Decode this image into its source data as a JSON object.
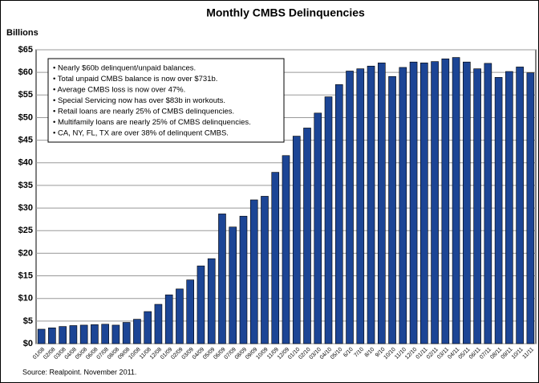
{
  "chart_data": {
    "type": "bar",
    "title": "Monthly CMBS Delinquencies",
    "y_axis_label": "Billions",
    "source": "Source: Realpoint.  November 2011.",
    "annotations": [
      "• Nearly $60b delinquent/unpaid balances.",
      "• Total unpaid CMBS balance is now over $731b.",
      "• Average CMBS loss is now over 47%.",
      "• Special Servicing now has over $83b in workouts.",
      "• Retail loans are nearly 25% of CMBS delinquencies.",
      "• Multifamily loans are nearly 25% of CMBS delinquencies.",
      "• CA, NY, FL, TX are over 38% of delinquent CMBS."
    ],
    "categories": [
      "01/08",
      "02/08",
      "03/08",
      "04/08",
      "05/08",
      "06/08",
      "07/08",
      "08/08",
      "09/08",
      "10/08",
      "11/08",
      "12/08",
      "01/09",
      "02/09",
      "03/09",
      "04/09",
      "05/09",
      "06/09",
      "07/09",
      "08/09",
      "09/09",
      "10/09",
      "11/09",
      "12/09",
      "01/10",
      "02/10",
      "03/10",
      "04/10",
      "05/10",
      "6/10",
      "7/10",
      "8/10",
      "9/10",
      "10/10",
      "11/10",
      "12/10",
      "01/11",
      "02/11",
      "03/11",
      "04/11",
      "05/11",
      "06/11",
      "07/11",
      "08/11",
      "09/11",
      "10/11",
      "11/11"
    ],
    "values": [
      3.2,
      3.5,
      3.8,
      4.0,
      4.1,
      4.2,
      4.3,
      4.1,
      4.7,
      5.4,
      7.1,
      8.7,
      10.8,
      12.1,
      14.1,
      17.2,
      18.8,
      28.7,
      25.8,
      28.2,
      31.8,
      32.6,
      37.9,
      41.6,
      45.9,
      47.7,
      51.0,
      54.6,
      57.3,
      60.3,
      60.8,
      61.4,
      62.1,
      59.1,
      61.1,
      62.3,
      62.1,
      62.4,
      63.0,
      63.3,
      62.3,
      60.8,
      62.0,
      58.9,
      60.2,
      61.2,
      59.9
    ],
    "color": "#1c4595",
    "ylim": [
      0,
      65
    ],
    "yticks": [
      {
        "value": 0,
        "label": "$0"
      },
      {
        "value": 5,
        "label": "$5"
      },
      {
        "value": 10,
        "label": "$10"
      },
      {
        "value": 15,
        "label": "$15"
      },
      {
        "value": 20,
        "label": "$20"
      },
      {
        "value": 25,
        "label": "$25"
      },
      {
        "value": 30,
        "label": "$30"
      },
      {
        "value": 35,
        "label": "$35"
      },
      {
        "value": 40,
        "label": "$40"
      },
      {
        "value": 45,
        "label": "$45"
      },
      {
        "value": 50,
        "label": "$50"
      },
      {
        "value": 55,
        "label": "$55"
      },
      {
        "value": 60,
        "label": "$60"
      },
      {
        "value": 65,
        "label": "$65"
      }
    ],
    "grid": true
  }
}
